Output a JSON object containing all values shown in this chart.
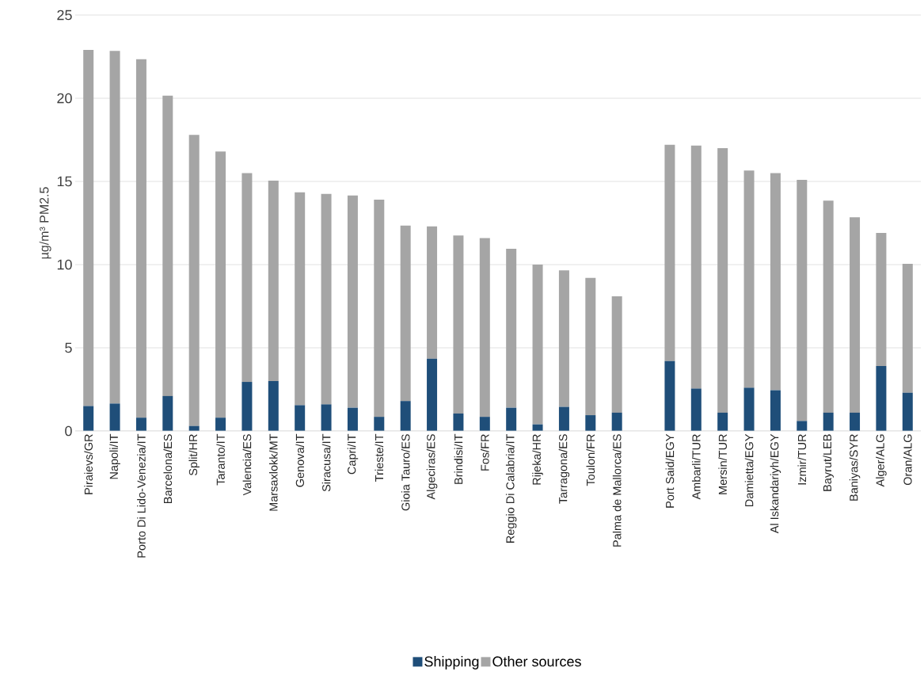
{
  "chart_data": {
    "type": "bar",
    "stacked": true,
    "ylabel": "µg/m³ PM2.5",
    "categories": [
      "Piraievs/GR",
      "Napoli/IT",
      "Porto Di Lido-Venezia/IT",
      "Barcelona/ES",
      "Split/HR",
      "Taranto/IT",
      "Valencia/ES",
      "Marsaxlokk/MT",
      "Genova/IT",
      "Siracusa/IT",
      "Capri/IT",
      "Trieste/IT",
      "Gioia Tauro/ES",
      "Algeciras/ES",
      "Brindisi/IT",
      "Fos/FR",
      "Reggio Di Calabria/IT",
      "Rijeka/HR",
      "Tarragona/ES",
      "Toulon/FR",
      "Palma de Mallorca/ES",
      null,
      "Port Said/EGY",
      "Ambarli/TUR",
      "Mersin/TUR",
      "Damietta/EGY",
      "Al Iskandariyh/EGY",
      "Izmir/TUR",
      "Bayrut/LEB",
      "Baniyas/SYR",
      "Alger/ALG",
      "Oran/ALG"
    ],
    "series": [
      {
        "name": "Shipping",
        "color": "#1f4e79",
        "values": [
          1.5,
          1.65,
          0.8,
          2.1,
          0.3,
          0.8,
          2.95,
          3.0,
          1.55,
          1.6,
          1.4,
          0.85,
          1.8,
          4.35,
          1.05,
          0.85,
          1.4,
          0.4,
          1.45,
          0.95,
          1.1,
          null,
          4.2,
          2.55,
          1.1,
          2.6,
          2.45,
          0.6,
          1.1,
          1.1,
          3.9,
          2.3
        ]
      },
      {
        "name": "Other sources",
        "color": "#a5a5a5",
        "values": [
          21.4,
          21.2,
          21.55,
          18.05,
          17.5,
          16.0,
          12.55,
          12.05,
          12.8,
          12.65,
          12.75,
          13.05,
          10.55,
          7.95,
          10.7,
          10.75,
          9.55,
          9.6,
          8.2,
          8.25,
          7.0,
          null,
          13.0,
          14.6,
          15.9,
          13.05,
          13.05,
          14.5,
          12.75,
          11.75,
          8.0,
          7.75
        ]
      }
    ],
    "ylim": [
      0,
      25
    ],
    "yticks": [
      0,
      5,
      10,
      15,
      20,
      25
    ],
    "grid": "y",
    "legend": "bottom"
  }
}
